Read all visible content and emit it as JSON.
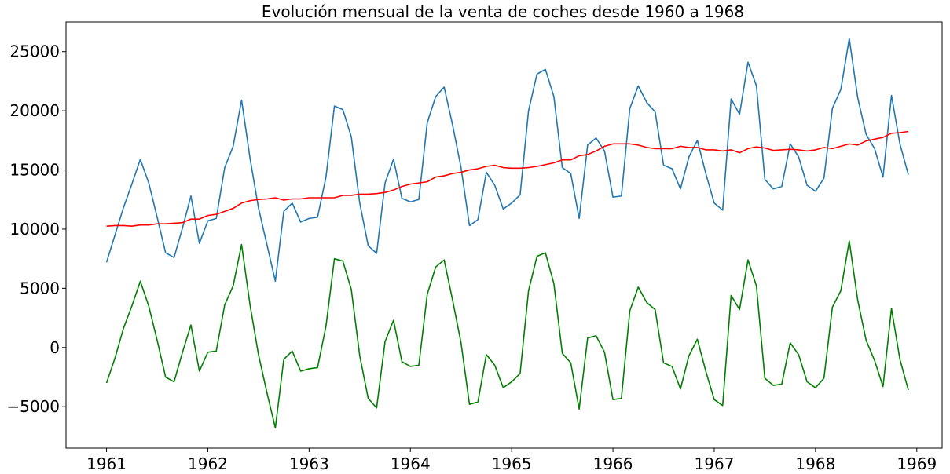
{
  "chart_data": {
    "type": "line",
    "title": "Evolución mensual de la venta de coches desde 1960 a 1968",
    "xlabel": "",
    "ylabel": "",
    "xlim": [
      1960.6,
      1969.25
    ],
    "ylim": [
      -8500,
      27500
    ],
    "x_ticks": [
      1961,
      1962,
      1963,
      1964,
      1965,
      1966,
      1967,
      1968,
      1969
    ],
    "x_tick_labels": [
      "1961",
      "1962",
      "1963",
      "1964",
      "1965",
      "1966",
      "1967",
      "1968",
      "1969"
    ],
    "y_ticks": [
      -5000,
      0,
      5000,
      10000,
      15000,
      20000,
      25000
    ],
    "y_tick_labels": [
      "−5000",
      "0",
      "5000",
      "10000",
      "15000",
      "20000",
      "25000"
    ],
    "grid": false,
    "x_start": 1961,
    "x_step": 0.0833333,
    "series": [
      {
        "color": "#1f77b4",
        "values": [
          7200,
          9500,
          11800,
          13800,
          15900,
          13900,
          11000,
          8000,
          7600,
          10100,
          12800,
          8800,
          10700,
          10900,
          15200,
          17000,
          20900,
          16000,
          11800,
          8700,
          5600,
          11500,
          12200,
          10600,
          10900,
          11000,
          14400,
          20400,
          20100,
          17800,
          12200,
          8600,
          7950,
          13900,
          15900,
          12600,
          12300,
          12500,
          19000,
          21200,
          22000,
          18800,
          15200,
          10300,
          10800,
          14800,
          13700,
          11700,
          12200,
          12900,
          20000,
          23100,
          23500,
          21200,
          15200,
          14700,
          10900,
          17100,
          17700,
          16600,
          12700,
          12800,
          20200,
          22100,
          20700,
          19900,
          15400,
          15100,
          13400,
          16100,
          17500,
          14700,
          12200,
          11600,
          21000,
          19700,
          24100,
          22100,
          14200,
          13400,
          13600,
          17200,
          16100,
          13700,
          13200,
          14300,
          20200,
          21800,
          26100,
          21100,
          18000,
          16800,
          14400,
          21300,
          17200,
          14600
        ]
      },
      {
        "color": "#ff0000",
        "values": [
          10250,
          10300,
          10300,
          10250,
          10350,
          10350,
          10450,
          10450,
          10500,
          10550,
          10850,
          10850,
          11150,
          11250,
          11500,
          11750,
          12200,
          12400,
          12500,
          12550,
          12650,
          12450,
          12550,
          12550,
          12650,
          12650,
          12650,
          12650,
          12850,
          12850,
          12950,
          12950,
          13000,
          13100,
          13300,
          13600,
          13800,
          13900,
          14000,
          14400,
          14500,
          14700,
          14800,
          15000,
          15100,
          15300,
          15400,
          15200,
          15150,
          15150,
          15200,
          15300,
          15450,
          15600,
          15850,
          15850,
          16200,
          16300,
          16600,
          17000,
          17200,
          17200,
          17200,
          17100,
          16900,
          16800,
          16800,
          16800,
          17000,
          16900,
          16900,
          16700,
          16700,
          16600,
          16700,
          16450,
          16800,
          16950,
          16850,
          16650,
          16700,
          16750,
          16700,
          16600,
          16700,
          16900,
          16800,
          17000,
          17200,
          17100,
          17450,
          17600,
          17750,
          18100,
          18150,
          18250
        ]
      },
      {
        "color": "#008000",
        "values": [
          -3000,
          -900,
          1600,
          3500,
          5600,
          3500,
          600,
          -2500,
          -2900,
          -400,
          1900,
          -2000,
          -400,
          -300,
          3600,
          5200,
          8700,
          3600,
          -600,
          -3800,
          -6800,
          -1000,
          -300,
          -2000,
          -1800,
          -1700,
          1800,
          7500,
          7300,
          4900,
          -700,
          -4300,
          -5100,
          500,
          2300,
          -1200,
          -1600,
          -1500,
          4500,
          6800,
          7400,
          4000,
          400,
          -4800,
          -4600,
          -600,
          -1500,
          -3400,
          -2900,
          -2200,
          4800,
          7700,
          8000,
          5400,
          -500,
          -1300,
          -5200,
          800,
          1000,
          -400,
          -4400,
          -4300,
          3100,
          5100,
          3800,
          3200,
          -1300,
          -1600,
          -3500,
          -700,
          700,
          -2000,
          -4400,
          -4900,
          4400,
          3200,
          7400,
          5200,
          -2600,
          -3200,
          -3100,
          400,
          -600,
          -2900,
          -3400,
          -2600,
          3400,
          4800,
          9000,
          4000,
          600,
          -1100,
          -3300,
          3300,
          -1000,
          -3600
        ]
      }
    ]
  }
}
